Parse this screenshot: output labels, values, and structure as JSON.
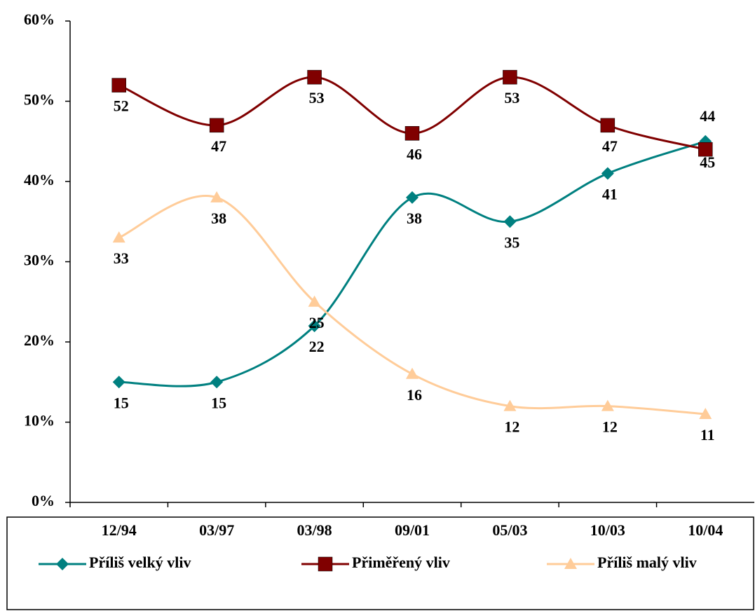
{
  "chart_data": {
    "type": "line",
    "categories": [
      "12/94",
      "03/97",
      "03/98",
      "09/01",
      "05/03",
      "10/03",
      "10/04"
    ],
    "series": [
      {
        "name": "Příliš velký vliv",
        "color": "#008080",
        "marker": "diamond",
        "values": [
          15,
          15,
          22,
          38,
          35,
          41,
          45
        ]
      },
      {
        "name": "Přiměřený vliv",
        "color": "#800000",
        "marker": "square",
        "values": [
          52,
          47,
          53,
          46,
          53,
          47,
          44
        ]
      },
      {
        "name": "Příliš malý vliv",
        "color": "#ffcc99",
        "marker": "triangle",
        "values": [
          33,
          38,
          25,
          16,
          12,
          12,
          11
        ]
      }
    ],
    "ylim": [
      0,
      60
    ],
    "yticks": [
      {
        "value": 0,
        "label": "0%"
      },
      {
        "value": 10,
        "label": "10%"
      },
      {
        "value": 20,
        "label": "20%"
      },
      {
        "value": 30,
        "label": "30%"
      },
      {
        "value": 40,
        "label": "40%"
      },
      {
        "value": 50,
        "label": "50%"
      },
      {
        "value": 60,
        "label": "60%"
      }
    ],
    "smooth": true,
    "legend": "bottom"
  }
}
